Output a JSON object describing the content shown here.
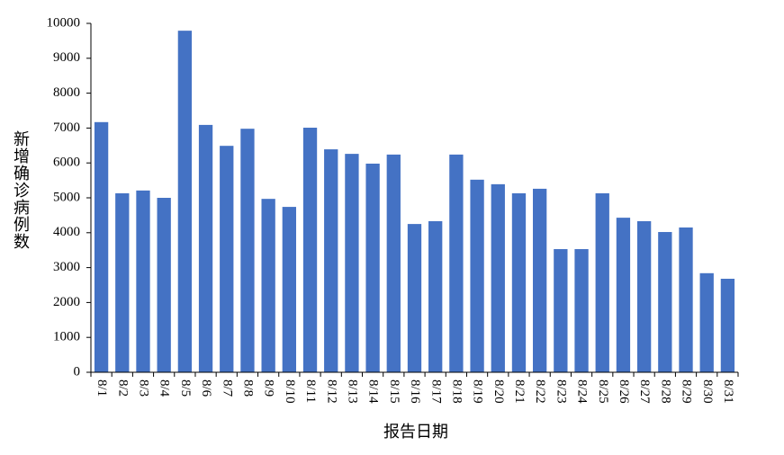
{
  "chart_data": {
    "type": "bar",
    "y_label": "新增确诊病例数",
    "x_label": "报告日期",
    "categories": [
      "8/1",
      "8/2",
      "8/3",
      "8/4",
      "8/5",
      "8/6",
      "8/7",
      "8/8",
      "8/9",
      "8/10",
      "8/11",
      "8/12",
      "8/13",
      "8/14",
      "8/15",
      "8/16",
      "8/17",
      "8/18",
      "8/19",
      "8/20",
      "8/21",
      "8/22",
      "8/23",
      "8/24",
      "8/25",
      "8/26",
      "8/27",
      "8/28",
      "8/29",
      "8/30",
      "8/31"
    ],
    "values": [
      7170,
      5130,
      5210,
      5000,
      9790,
      7090,
      6490,
      6980,
      4970,
      4740,
      7010,
      6390,
      6260,
      5980,
      6240,
      4250,
      4330,
      6240,
      5520,
      5390,
      5130,
      5260,
      3530,
      3530,
      5130,
      4430,
      4330,
      4020,
      4150,
      2840,
      2680
    ],
    "color": "#4472c4",
    "ylim": [
      0,
      10000
    ],
    "yticks": [
      0,
      1000,
      2000,
      3000,
      4000,
      5000,
      6000,
      7000,
      8000,
      9000,
      10000
    ],
    "grid": false
  }
}
